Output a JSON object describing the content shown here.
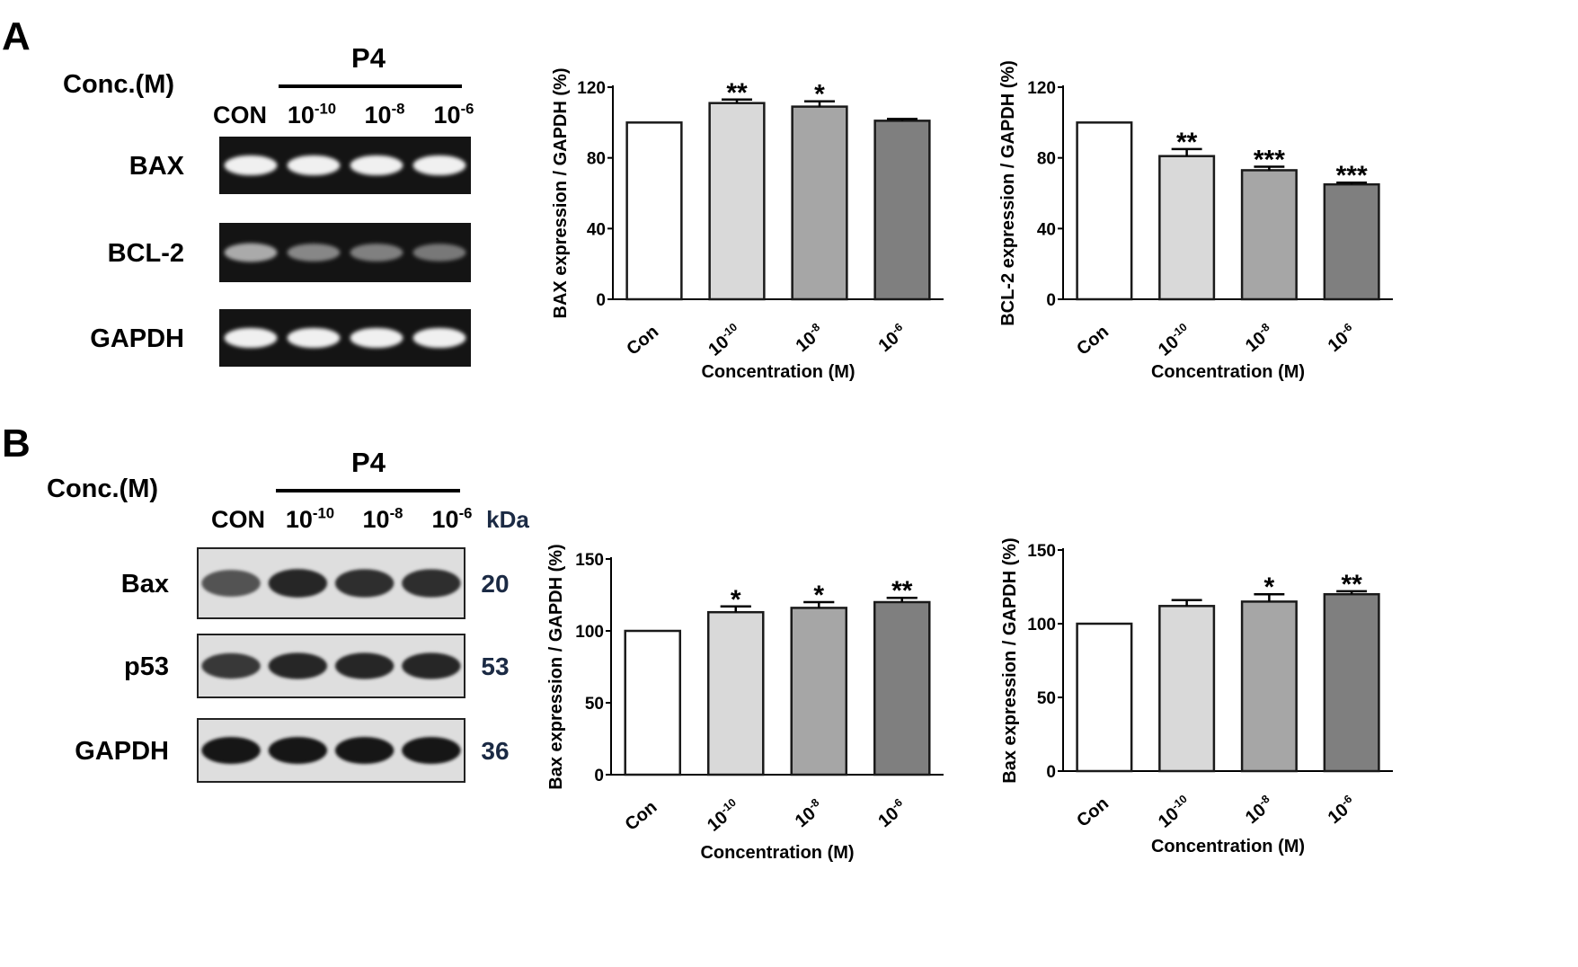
{
  "panels": [
    {
      "letter": "A",
      "conc_label": "Conc.(M)",
      "treatment": "P4",
      "lanes": [
        {
          "base": "CON",
          "exp": ""
        },
        {
          "base": "10",
          "exp": "-10"
        },
        {
          "base": "10",
          "exp": "-8"
        },
        {
          "base": "10",
          "exp": "-6"
        }
      ],
      "kda_label": "",
      "blots": [
        {
          "name": "BAX",
          "kda": "",
          "intensity": [
            0.95,
            0.95,
            0.95,
            0.95
          ]
        },
        {
          "name": "BCL-2",
          "kda": "",
          "intensity": [
            0.62,
            0.45,
            0.42,
            0.38
          ]
        },
        {
          "name": "GAPDH",
          "kda": "",
          "intensity": [
            0.95,
            0.95,
            0.95,
            0.95
          ]
        }
      ]
    },
    {
      "letter": "B",
      "conc_label": "Conc.(M)",
      "treatment": "P4",
      "lanes": [
        {
          "base": "CON",
          "exp": ""
        },
        {
          "base": "10",
          "exp": "-10"
        },
        {
          "base": "10",
          "exp": "-8"
        },
        {
          "base": "10",
          "exp": "-6"
        }
      ],
      "kda_label": "kDa",
      "blots": [
        {
          "name": "Bax",
          "kda": "20",
          "intensity": [
            0.6,
            0.85,
            0.8,
            0.8
          ]
        },
        {
          "name": "p53",
          "kda": "53",
          "intensity": [
            0.75,
            0.85,
            0.85,
            0.85
          ]
        },
        {
          "name": "GAPDH",
          "kda": "36",
          "intensity": [
            0.95,
            0.95,
            0.95,
            0.95
          ]
        }
      ]
    }
  ],
  "chart_data": [
    {
      "type": "bar",
      "categories": [
        {
          "base": "Con",
          "exp": ""
        },
        {
          "base": "10",
          "exp": "-10"
        },
        {
          "base": "10",
          "exp": "-8"
        },
        {
          "base": "10",
          "exp": "-6"
        }
      ],
      "values": [
        100,
        111,
        109,
        101
      ],
      "errors": [
        0,
        2,
        3,
        1
      ],
      "significance": [
        "",
        "**",
        "*",
        ""
      ],
      "bar_colors": [
        "#ffffff",
        "#d9d9d9",
        "#a6a6a6",
        "#7f7f7f"
      ],
      "ylabel": "BAX expression / GAPDH (%)",
      "xlabel": "Concentration (M)",
      "ylim": [
        0,
        120
      ],
      "yticks": [
        0,
        40,
        80,
        120
      ]
    },
    {
      "type": "bar",
      "categories": [
        {
          "base": "Con",
          "exp": ""
        },
        {
          "base": "10",
          "exp": "-10"
        },
        {
          "base": "10",
          "exp": "-8"
        },
        {
          "base": "10",
          "exp": "-6"
        }
      ],
      "values": [
        100,
        81,
        73,
        65
      ],
      "errors": [
        0,
        4,
        2,
        1
      ],
      "significance": [
        "",
        "**",
        "***",
        "***"
      ],
      "bar_colors": [
        "#ffffff",
        "#d9d9d9",
        "#a6a6a6",
        "#7f7f7f"
      ],
      "ylabel": "BCL-2 expression / GAPDH (%)",
      "xlabel": "Concentration (M)",
      "ylim": [
        0,
        120
      ],
      "yticks": [
        0,
        40,
        80,
        120
      ]
    },
    {
      "type": "bar",
      "categories": [
        {
          "base": "Con",
          "exp": ""
        },
        {
          "base": "10",
          "exp": "-10"
        },
        {
          "base": "10",
          "exp": "-8"
        },
        {
          "base": "10",
          "exp": "-6"
        }
      ],
      "values": [
        100,
        113,
        116,
        120
      ],
      "errors": [
        0,
        4,
        4,
        3
      ],
      "significance": [
        "",
        "*",
        "*",
        "**"
      ],
      "bar_colors": [
        "#ffffff",
        "#d9d9d9",
        "#a6a6a6",
        "#7f7f7f"
      ],
      "ylabel": "Bax expression / GAPDH (%)",
      "xlabel": "Concentration (M)",
      "ylim": [
        0,
        150
      ],
      "yticks": [
        0,
        50,
        100,
        150
      ]
    },
    {
      "type": "bar",
      "categories": [
        {
          "base": "Con",
          "exp": ""
        },
        {
          "base": "10",
          "exp": "-10"
        },
        {
          "base": "10",
          "exp": "-8"
        },
        {
          "base": "10",
          "exp": "-6"
        }
      ],
      "values": [
        100,
        112,
        115,
        120
      ],
      "errors": [
        0,
        4,
        5,
        2
      ],
      "significance": [
        "",
        "",
        "*",
        "**"
      ],
      "bar_colors": [
        "#ffffff",
        "#d9d9d9",
        "#a6a6a6",
        "#7f7f7f"
      ],
      "ylabel": "Bax expression / GAPDH (%)",
      "xlabel": "Concentration (M)",
      "ylim": [
        0,
        150
      ],
      "yticks": [
        0,
        50,
        100,
        150
      ]
    }
  ]
}
